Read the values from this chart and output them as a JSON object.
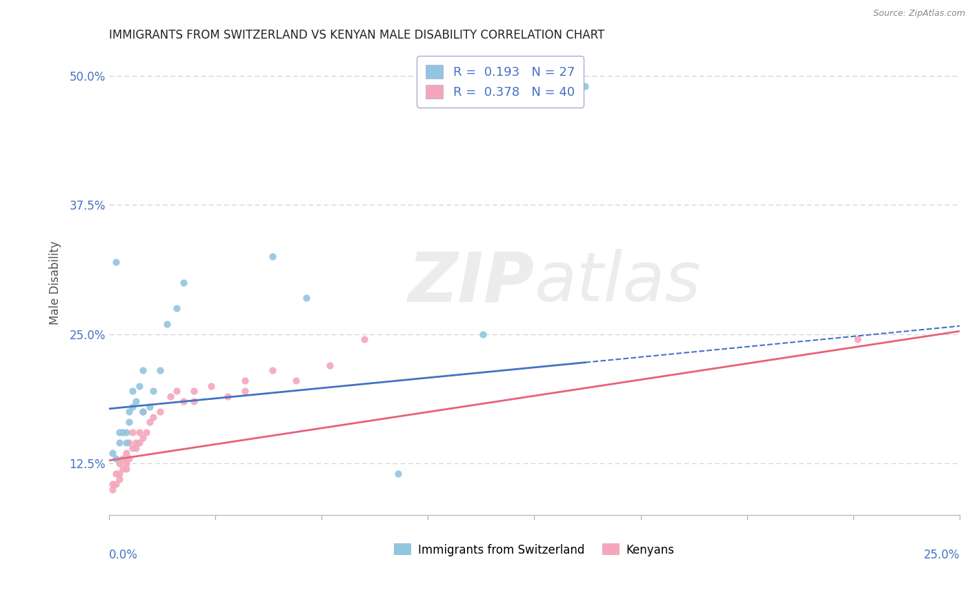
{
  "title": "IMMIGRANTS FROM SWITZERLAND VS KENYAN MALE DISABILITY CORRELATION CHART",
  "source": "Source: ZipAtlas.com",
  "ylabel": "Male Disability",
  "xlim": [
    0.0,
    0.25
  ],
  "ylim": [
    0.075,
    0.525
  ],
  "yticks": [
    0.125,
    0.25,
    0.375,
    0.5
  ],
  "ytick_labels": [
    "12.5%",
    "25.0%",
    "37.5%",
    "50.0%"
  ],
  "xticks": [
    0.0,
    0.03125,
    0.0625,
    0.09375,
    0.125,
    0.15625,
    0.1875,
    0.21875,
    0.25
  ],
  "legend_r1": "R =  0.193",
  "legend_n1": "N = 27",
  "legend_r2": "R =  0.378",
  "legend_n2": "N = 40",
  "color_swiss": "#92c5de",
  "color_kenyan": "#f4a6bb",
  "color_swiss_line": "#4472c4",
  "color_kenyan_line": "#e8607a",
  "color_axis_labels": "#4472c4",
  "swiss_line_intercept": 0.178,
  "swiss_line_slope": 0.32,
  "kenyan_line_intercept": 0.128,
  "kenyan_line_slope": 0.5,
  "swiss_x": [
    0.001,
    0.002,
    0.003,
    0.003,
    0.004,
    0.005,
    0.005,
    0.006,
    0.006,
    0.007,
    0.007,
    0.008,
    0.009,
    0.01,
    0.01,
    0.012,
    0.013,
    0.015,
    0.017,
    0.02,
    0.022,
    0.048,
    0.058,
    0.085,
    0.11,
    0.14,
    0.002
  ],
  "swiss_y": [
    0.135,
    0.13,
    0.145,
    0.155,
    0.155,
    0.145,
    0.155,
    0.165,
    0.175,
    0.18,
    0.195,
    0.185,
    0.2,
    0.175,
    0.215,
    0.18,
    0.195,
    0.215,
    0.26,
    0.275,
    0.3,
    0.325,
    0.285,
    0.115,
    0.25,
    0.49,
    0.32
  ],
  "kenyan_x": [
    0.001,
    0.001,
    0.002,
    0.002,
    0.003,
    0.003,
    0.003,
    0.004,
    0.004,
    0.005,
    0.005,
    0.005,
    0.006,
    0.006,
    0.007,
    0.007,
    0.008,
    0.008,
    0.009,
    0.009,
    0.01,
    0.01,
    0.011,
    0.012,
    0.013,
    0.015,
    0.018,
    0.02,
    0.022,
    0.025,
    0.025,
    0.03,
    0.035,
    0.04,
    0.04,
    0.048,
    0.055,
    0.065,
    0.075,
    0.22
  ],
  "kenyan_y": [
    0.1,
    0.105,
    0.105,
    0.115,
    0.11,
    0.115,
    0.125,
    0.12,
    0.13,
    0.12,
    0.125,
    0.135,
    0.13,
    0.145,
    0.14,
    0.155,
    0.14,
    0.145,
    0.145,
    0.155,
    0.15,
    0.175,
    0.155,
    0.165,
    0.17,
    0.175,
    0.19,
    0.195,
    0.185,
    0.185,
    0.195,
    0.2,
    0.19,
    0.195,
    0.205,
    0.215,
    0.205,
    0.22,
    0.245,
    0.245
  ],
  "grid_color": "#d0d0d0",
  "background_color": "#ffffff",
  "title_color": "#222222",
  "label_color": "#4472c4"
}
